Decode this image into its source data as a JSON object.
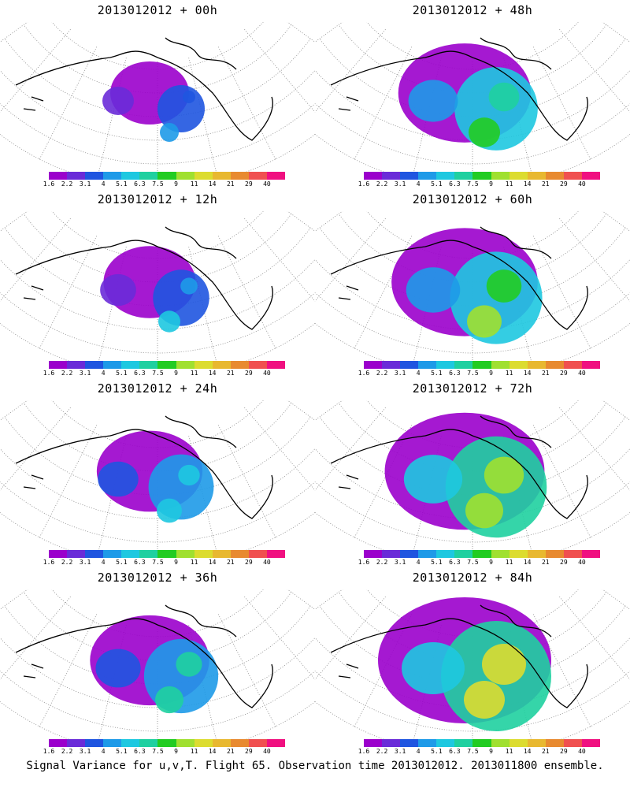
{
  "panels": [
    {
      "title": "2013012012 + 00h",
      "lead_hours": 0
    },
    {
      "title": "2013012012 + 48h",
      "lead_hours": 48
    },
    {
      "title": "2013012012 + 12h",
      "lead_hours": 12
    },
    {
      "title": "2013012012 + 60h",
      "lead_hours": 60
    },
    {
      "title": "2013012012 + 24h",
      "lead_hours": 24
    },
    {
      "title": "2013012012 + 72h",
      "lead_hours": 72
    },
    {
      "title": "2013012012 + 36h",
      "lead_hours": 36
    },
    {
      "title": "2013012012 + 84h",
      "lead_hours": 84
    }
  ],
  "colorbar": {
    "labels": [
      "1.6",
      "2.2",
      "3.1",
      "4",
      "5.1",
      "6.3",
      "7.5",
      "9",
      "11",
      "14",
      "21",
      "29",
      "40"
    ],
    "colors": [
      "#9b00cc",
      "#6a2bd8",
      "#1f55e0",
      "#1e9ae8",
      "#1ec8e0",
      "#1fd0a0",
      "#22cc22",
      "#a0e030",
      "#dcdc30",
      "#e8b830",
      "#e88a30",
      "#f05050",
      "#f01080"
    ]
  },
  "footer": "Signal Variance for u,v,T. Flight 65. Observation time 2013012012. 2013011800 ensemble.",
  "colors": {
    "coast": "#000000",
    "grid": "#888888",
    "low": "#9b00cc"
  }
}
